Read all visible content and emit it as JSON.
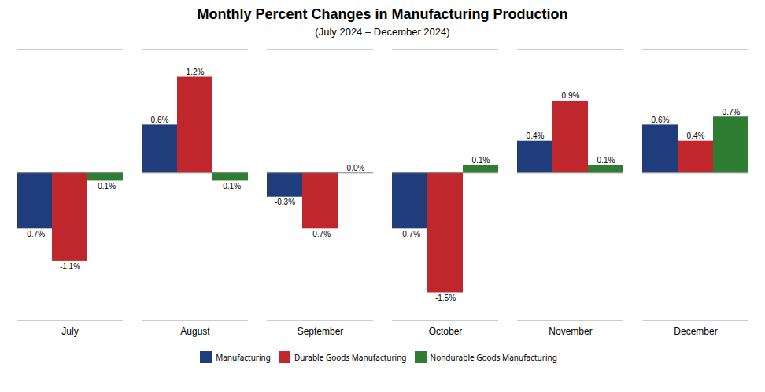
{
  "chart_data": {
    "type": "bar",
    "title": "Monthly Percent Changes in Manufacturing Production",
    "subtitle": "(July 2024 – December 2024)",
    "categories": [
      "July",
      "August",
      "September",
      "October",
      "November",
      "December"
    ],
    "series": [
      {
        "name": "Manufacturing",
        "color": "#1f3d7a",
        "values": [
          -0.7,
          0.6,
          -0.3,
          -0.7,
          0.4,
          0.6
        ],
        "value_labels": [
          "-0.7%",
          "0.6%",
          "-0.3%",
          "-0.7%",
          "0.4%",
          "0.6%"
        ]
      },
      {
        "name": "Durable Goods Manufacturing",
        "color": "#c0272d",
        "values": [
          -1.1,
          1.2,
          -0.7,
          -1.5,
          0.9,
          0.4
        ],
        "value_labels": [
          "-1.1%",
          "1.2%",
          "-0.7%",
          "-1.5%",
          "0.9%",
          "0.4%"
        ]
      },
      {
        "name": "Nondurable Goods Manufacturing",
        "color": "#2e7d32",
        "values": [
          -0.1,
          -0.1,
          0.0,
          0.1,
          0.1,
          0.7
        ],
        "value_labels": [
          "-0.1%",
          "-0.1%",
          "0.0%",
          "0.1%",
          "0.1%",
          "0.7%"
        ]
      }
    ],
    "ylim": [
      -1.85,
      1.55
    ],
    "data_labels": true,
    "tick_labels": "x",
    "legend": "bottom"
  }
}
